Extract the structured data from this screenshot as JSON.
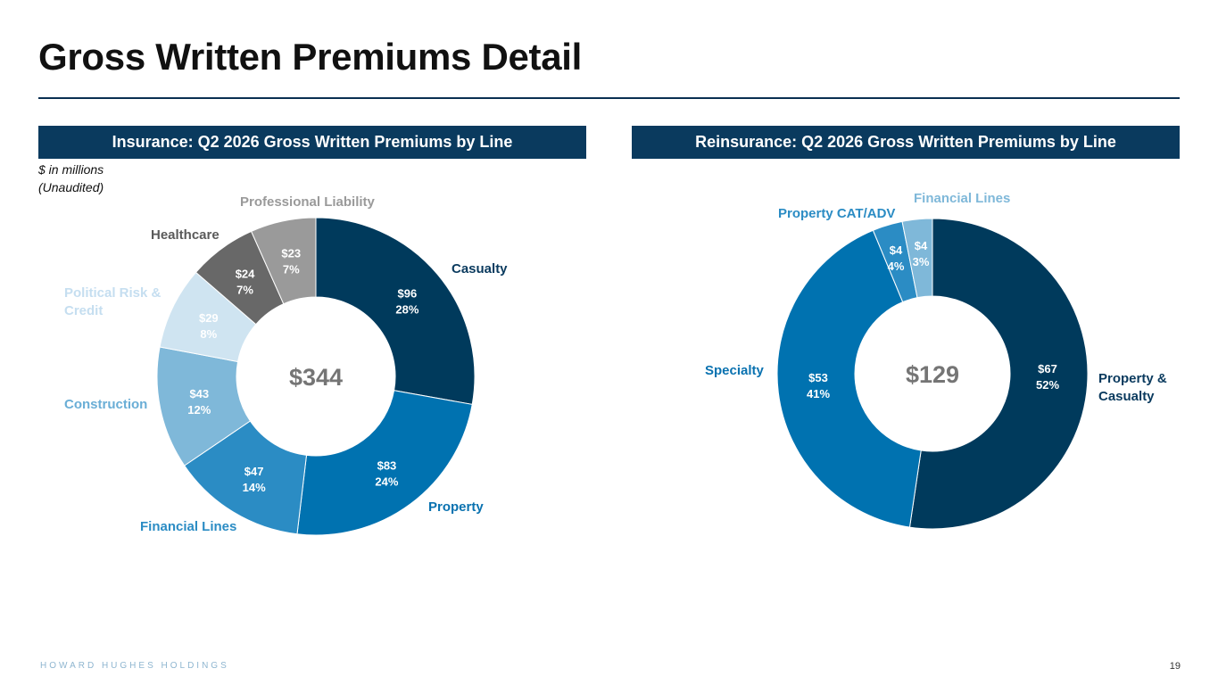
{
  "slide": {
    "title": "Gross Written Premiums Detail",
    "note_line1": "$ in millions",
    "note_line2": "(Unaudited)",
    "footer_brand": "HOWARD HUGHES HOLDINGS",
    "page_number": "19"
  },
  "chart_data": [
    {
      "type": "pie",
      "donut": true,
      "title": "Insurance: Q2 2026 Gross Written Premiums by Line",
      "center_label": "$344",
      "units": "$ in millions",
      "categories": [
        "Casualty",
        "Property",
        "Financial Lines",
        "Construction",
        "Political Risk & Credit",
        "Healthcare",
        "Professional Liability"
      ],
      "values": [
        96,
        83,
        47,
        43,
        29,
        24,
        23
      ],
      "value_labels": [
        "$96",
        "$83",
        "$47",
        "$43",
        "$29",
        "$24",
        "$23"
      ],
      "percent_labels": [
        "28%",
        "24%",
        "14%",
        "12%",
        "8%",
        "7%",
        "7%"
      ],
      "colors": [
        "#003a5c",
        "#0072b0",
        "#2b8cc4",
        "#7fb8d9",
        "#cfe4f1",
        "#686868",
        "#9a9a9a"
      ],
      "label_colors": [
        "#0a3a5e",
        "#0a72b0",
        "#2b8cc4",
        "#6aaed6",
        "#c5def0",
        "#5a5a5a",
        "#9a9a9a"
      ],
      "value_text_colors": [
        "#ffffff",
        "#ffffff",
        "#ffffff",
        "#ffffff",
        "#ffffff",
        "#ffffff",
        "#ffffff"
      ]
    },
    {
      "type": "pie",
      "donut": true,
      "title": "Reinsurance: Q2 2026 Gross Written Premiums by Line",
      "center_label": "$129",
      "units": "$ in millions",
      "categories": [
        "Property & Casualty",
        "Specialty",
        "Property CAT/ADV",
        "Financial Lines"
      ],
      "values": [
        67,
        53,
        4,
        4
      ],
      "value_labels": [
        "$67",
        "$53",
        "$4",
        "$4"
      ],
      "percent_labels": [
        "52%",
        "41%",
        "4%",
        "3%"
      ],
      "colors": [
        "#003a5c",
        "#0072b0",
        "#2b8cc4",
        "#7fb8d9"
      ],
      "label_colors": [
        "#0a3a5e",
        "#0a72b0",
        "#2b8cc4",
        "#7fb8d9"
      ],
      "value_text_colors": [
        "#ffffff",
        "#ffffff",
        "#ffffff",
        "#ffffff"
      ]
    }
  ]
}
